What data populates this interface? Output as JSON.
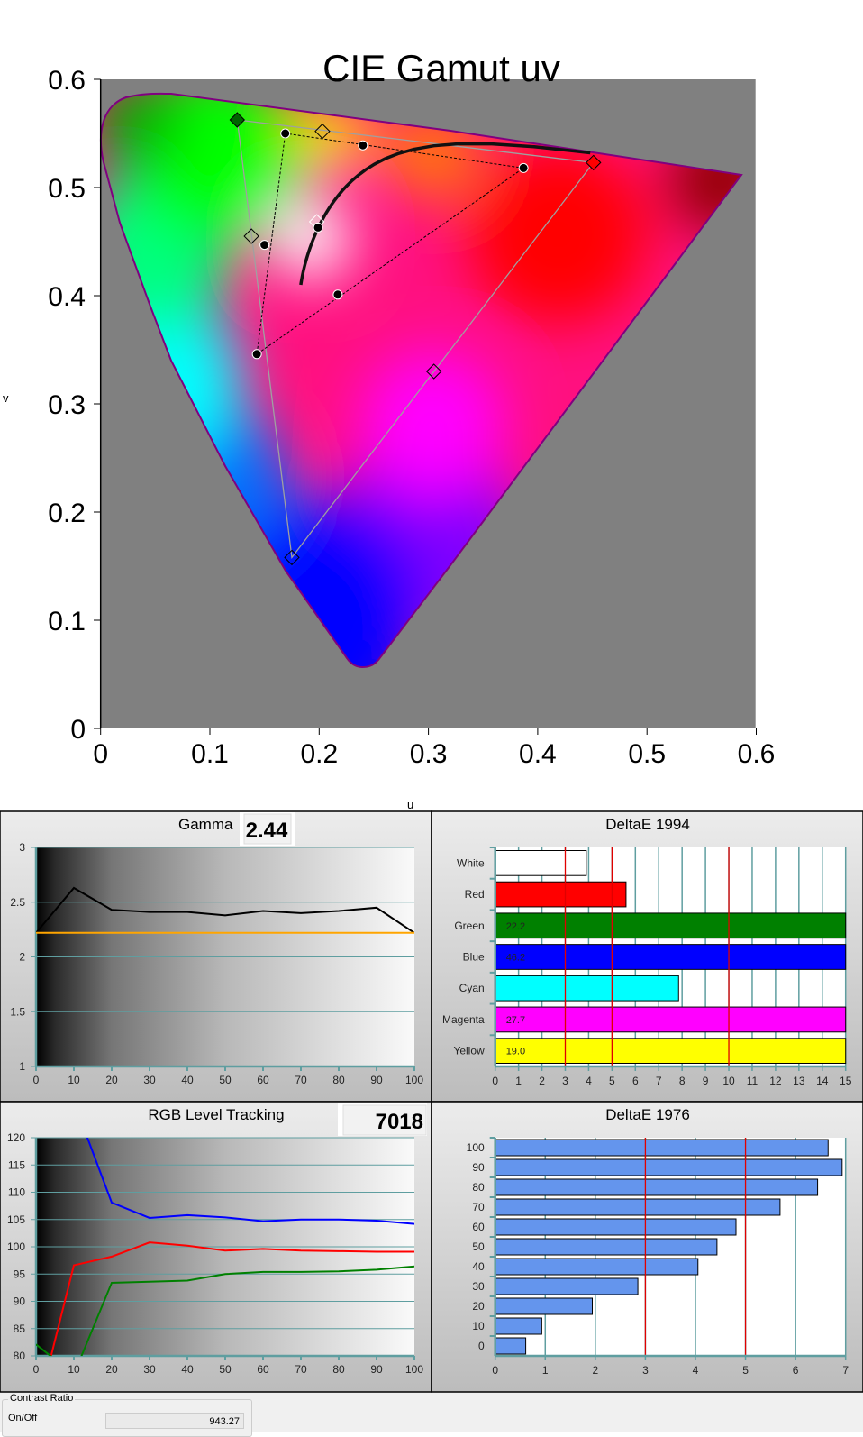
{
  "gamma_box": {
    "value": "2.44"
  },
  "cct_box": {
    "value": "7018"
  },
  "contrast_ratio": {
    "group_label": "Contrast Ratio",
    "label": "On/Off",
    "value": "943.27"
  },
  "colors": {
    "plot_bg": "#808080",
    "locus_stroke": "#800080",
    "grid": "#5f9ea0",
    "target_line": "#ff0000",
    "bar1976": "#6495ed",
    "gamma_target": "#ffa500"
  },
  "chart_data": [
    {
      "id": "cie",
      "type": "scatter",
      "title": "CIE Gamut uv",
      "xlabel": "u",
      "ylabel": "v",
      "xlim": [
        0,
        0.6
      ],
      "ylim": [
        0,
        0.6
      ],
      "xticks": [
        "0",
        "0.1",
        "0.2",
        "0.3",
        "0.4",
        "0.5",
        "0.6"
      ],
      "yticks": [
        "0",
        "0.1",
        "0.2",
        "0.3",
        "0.4",
        "0.5",
        "0.6"
      ],
      "targets": [
        {
          "name": "Red",
          "u": 0.451,
          "v": 0.523,
          "fill": "#ff0000"
        },
        {
          "name": "Green",
          "u": 0.125,
          "v": 0.5625,
          "fill": "#006400"
        },
        {
          "name": "Blue",
          "u": 0.175,
          "v": 0.158,
          "fill": "none"
        },
        {
          "name": "White",
          "u": 0.1978,
          "v": 0.4683,
          "fill": "none"
        },
        {
          "name": "Cyan",
          "u": 0.138,
          "v": 0.455,
          "fill": "none"
        },
        {
          "name": "Magenta",
          "u": 0.305,
          "v": 0.33,
          "fill": "none"
        },
        {
          "name": "Yellow",
          "u": 0.203,
          "v": 0.552,
          "fill": "none"
        }
      ],
      "measured": [
        {
          "name": "Red",
          "u": 0.387,
          "v": 0.518
        },
        {
          "name": "Green",
          "u": 0.169,
          "v": 0.55
        },
        {
          "name": "Blue",
          "u": 0.143,
          "v": 0.346
        },
        {
          "name": "White",
          "u": 0.199,
          "v": 0.463
        },
        {
          "name": "Cyan",
          "u": 0.15,
          "v": 0.447
        },
        {
          "name": "Magenta",
          "u": 0.217,
          "v": 0.401
        },
        {
          "name": "Yellow",
          "u": 0.24,
          "v": 0.539
        }
      ]
    },
    {
      "id": "gamma",
      "type": "line",
      "title": "Gamma",
      "x": [
        0,
        10,
        20,
        30,
        40,
        50,
        60,
        70,
        80,
        90,
        100
      ],
      "xlim": [
        0,
        100
      ],
      "ylim": [
        1,
        3
      ],
      "yticks": [
        1,
        1.5,
        2,
        2.5,
        3
      ],
      "series": [
        {
          "values": [
            2.22,
            2.63,
            2.43,
            2.41,
            2.41,
            2.38,
            2.42,
            2.4,
            2.42,
            2.45,
            2.22
          ],
          "color": "#000000"
        },
        {
          "values": [
            2.22,
            2.22,
            2.22,
            2.22,
            2.22,
            2.22,
            2.22,
            2.22,
            2.22,
            2.22,
            2.22
          ],
          "color": "#ffa500"
        }
      ]
    },
    {
      "id": "de1994",
      "type": "bar",
      "orientation": "horizontal",
      "title": "DeltaE 1994",
      "categories": [
        "White",
        "Red",
        "Green",
        "Blue",
        "Cyan",
        "Magenta",
        "Yellow"
      ],
      "values": [
        3.9,
        5.6,
        22.2,
        46.2,
        7.85,
        27.7,
        19.0
      ],
      "data_labels": [
        "",
        "",
        "22.2",
        "46.2",
        "",
        "27.7",
        "19.0"
      ],
      "bar_colors": [
        "#ffffff",
        "#ff0000",
        "#008000",
        "#0000ff",
        "#00ffff",
        "#ff00ff",
        "#ffff00"
      ],
      "xlim": [
        0,
        15
      ],
      "xticks": [
        0,
        1,
        2,
        3,
        4,
        5,
        6,
        7,
        8,
        9,
        10,
        11,
        12,
        13,
        14,
        15
      ],
      "reference_lines": [
        3,
        5,
        10
      ]
    },
    {
      "id": "rgb",
      "type": "line",
      "title": "RGB Level Tracking",
      "x": [
        0,
        10,
        20,
        30,
        40,
        50,
        60,
        70,
        80,
        90,
        100
      ],
      "xlim": [
        0,
        100
      ],
      "ylim": [
        80,
        120
      ],
      "yticks": [
        80,
        85,
        90,
        95,
        100,
        105,
        110,
        115,
        120
      ],
      "series": [
        {
          "values": [
            null,
            126.6,
            108.1,
            105.3,
            105.8,
            105.4,
            104.7,
            105.0,
            105.0,
            104.8,
            104.2
          ],
          "color": "#0000ff"
        },
        {
          "values": [
            69.0,
            96.6,
            98.2,
            100.8,
            100.2,
            99.3,
            99.6,
            99.3,
            99.2,
            99.1,
            99.1
          ],
          "color": "#ff0000"
        },
        {
          "values": [
            82.1,
            76.6,
            93.4,
            93.6,
            93.8,
            95.0,
            95.4,
            95.4,
            95.5,
            95.8,
            96.4
          ],
          "color": "#008000"
        }
      ]
    },
    {
      "id": "de1976",
      "type": "bar",
      "orientation": "horizontal",
      "title": "DeltaE 1976",
      "categories": [
        "100",
        "90",
        "80",
        "70",
        "60",
        "50",
        "40",
        "30",
        "20",
        "10",
        "0"
      ],
      "values": [
        6.65,
        6.93,
        6.44,
        5.69,
        4.81,
        4.43,
        4.05,
        2.85,
        1.94,
        0.93,
        0.61
      ],
      "xlim": [
        0,
        7
      ],
      "xticks": [
        0,
        1,
        2,
        3,
        4,
        5,
        6,
        7
      ],
      "reference_lines": [
        3,
        5
      ]
    }
  ]
}
